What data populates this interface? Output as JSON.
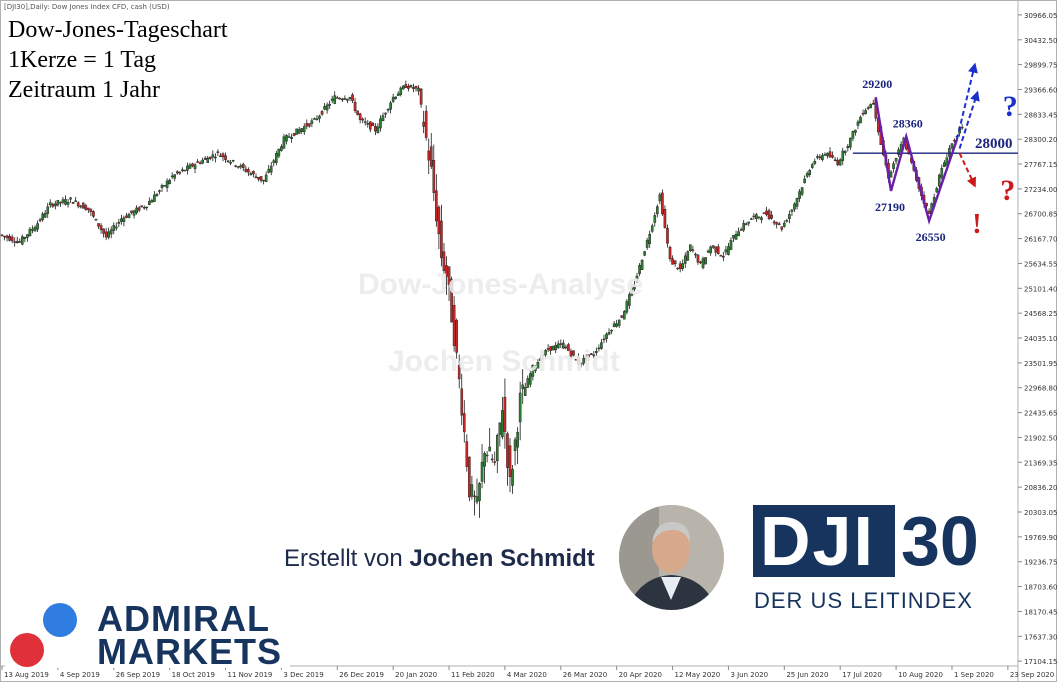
{
  "header": {
    "symbol_info": "[DJI30],Daily: Dow Jones Index CFD, cash (USD)",
    "title_line1": "Dow-Jones-Tageschart",
    "title_line2": "1Kerze = 1 Tag",
    "title_line3": "Zeitraum 1 Jahr"
  },
  "watermark": {
    "line1": "Dow-Jones-Analyse",
    "line2": "Jochen Schmidt"
  },
  "credit": {
    "prefix": "Erstellt von",
    "name": "Jochen Schmidt"
  },
  "brand": {
    "dji": "DJI",
    "number": "30",
    "subtitle": "DER US LEITINDEX",
    "admiral_line1": "ADMIRAL",
    "admiral_line2": "MARKETS"
  },
  "colors": {
    "navy": "#16345e",
    "bull": "#2e7d32",
    "bear": "#c62828",
    "pattern": "#6a1fa8",
    "arrow_blue": "#1a2fcc",
    "arrow_red": "#cc1a1a",
    "level_line": "#1a237e"
  },
  "chart_data": {
    "type": "candlestick",
    "title": "Dow-Jones-Tageschart",
    "y_ticks": [
      30966.05,
      30432.5,
      29899.75,
      29366.6,
      28833.45,
      28300.2,
      27767.15,
      27234.0,
      26700.85,
      26167.7,
      25634.55,
      25101.4,
      24568.25,
      24035.1,
      23501.95,
      22968.8,
      22435.65,
      21902.5,
      21369.35,
      20836.2,
      20303.05,
      19769.9,
      19236.75,
      18703.6,
      18170.45,
      17637.3,
      17104.15
    ],
    "x_ticks": [
      "13 Aug 2019",
      "4 Sep 2019",
      "26 Sep 2019",
      "18 Oct 2019",
      "11 Nov 2019",
      "3 Dec 2019",
      "26 Dec 2019",
      "20 Jan 2020",
      "11 Feb 2020",
      "4 Mar 2020",
      "26 Mar 2020",
      "20 Apr 2020",
      "12 May 2020",
      "3 Jun 2020",
      "25 Jun 2020",
      "17 Jul 2020",
      "10 Aug 2020",
      "1 Sep 2020",
      "23 Sep 2020"
    ],
    "ylim": [
      17000,
      31200
    ],
    "path_points": [
      {
        "d": 0,
        "v": 26250
      },
      {
        "d": 8,
        "v": 26100
      },
      {
        "d": 15,
        "v": 26500
      },
      {
        "d": 20,
        "v": 26900
      },
      {
        "d": 28,
        "v": 27000
      },
      {
        "d": 35,
        "v": 26800
      },
      {
        "d": 42,
        "v": 26200
      },
      {
        "d": 48,
        "v": 26600
      },
      {
        "d": 58,
        "v": 26900
      },
      {
        "d": 68,
        "v": 27500
      },
      {
        "d": 78,
        "v": 27800
      },
      {
        "d": 86,
        "v": 28000
      },
      {
        "d": 92,
        "v": 27800
      },
      {
        "d": 98,
        "v": 27600
      },
      {
        "d": 104,
        "v": 27400
      },
      {
        "d": 112,
        "v": 28300
      },
      {
        "d": 124,
        "v": 28700
      },
      {
        "d": 132,
        "v": 29200
      },
      {
        "d": 138,
        "v": 29200
      },
      {
        "d": 142,
        "v": 28700
      },
      {
        "d": 148,
        "v": 28500
      },
      {
        "d": 155,
        "v": 29200
      },
      {
        "d": 160,
        "v": 29450
      },
      {
        "d": 165,
        "v": 29350
      },
      {
        "d": 170,
        "v": 27600
      },
      {
        "d": 174,
        "v": 25800
      },
      {
        "d": 176,
        "v": 25400
      },
      {
        "d": 179,
        "v": 24100
      },
      {
        "d": 182,
        "v": 22600
      },
      {
        "d": 185,
        "v": 20800
      },
      {
        "d": 188,
        "v": 20400
      },
      {
        "d": 191,
        "v": 21700
      },
      {
        "d": 195,
        "v": 21300
      },
      {
        "d": 198,
        "v": 22600
      },
      {
        "d": 201,
        "v": 20900
      },
      {
        "d": 205,
        "v": 22700
      },
      {
        "d": 210,
        "v": 23400
      },
      {
        "d": 216,
        "v": 23800
      },
      {
        "d": 222,
        "v": 23900
      },
      {
        "d": 228,
        "v": 23500
      },
      {
        "d": 234,
        "v": 23700
      },
      {
        "d": 240,
        "v": 24200
      },
      {
        "d": 245,
        "v": 24500
      },
      {
        "d": 250,
        "v": 25200
      },
      {
        "d": 256,
        "v": 26300
      },
      {
        "d": 260,
        "v": 27100
      },
      {
        "d": 264,
        "v": 25700
      },
      {
        "d": 268,
        "v": 25500
      },
      {
        "d": 272,
        "v": 26000
      },
      {
        "d": 276,
        "v": 25600
      },
      {
        "d": 280,
        "v": 26000
      },
      {
        "d": 285,
        "v": 25800
      },
      {
        "d": 290,
        "v": 26300
      },
      {
        "d": 296,
        "v": 26600
      },
      {
        "d": 302,
        "v": 26700
      },
      {
        "d": 308,
        "v": 26400
      },
      {
        "d": 312,
        "v": 26800
      },
      {
        "d": 316,
        "v": 27300
      },
      {
        "d": 320,
        "v": 27800
      },
      {
        "d": 325,
        "v": 28000
      },
      {
        "d": 330,
        "v": 27800
      },
      {
        "d": 335,
        "v": 28300
      },
      {
        "d": 340,
        "v": 28900
      },
      {
        "d": 344,
        "v": 29100
      },
      {
        "d": 347,
        "v": 28200
      },
      {
        "d": 350,
        "v": 27500
      },
      {
        "d": 353,
        "v": 27900
      },
      {
        "d": 356,
        "v": 28300
      },
      {
        "d": 360,
        "v": 27600
      },
      {
        "d": 363,
        "v": 27100
      },
      {
        "d": 366,
        "v": 26700
      },
      {
        "d": 370,
        "v": 27500
      },
      {
        "d": 374,
        "v": 28100
      },
      {
        "d": 378,
        "v": 28500
      }
    ],
    "level_line": {
      "value": 28000,
      "label": "28000"
    },
    "annotations": [
      {
        "label": "29200",
        "d": 345,
        "v": 29200
      },
      {
        "label": "28360",
        "d": 357,
        "v": 28360
      },
      {
        "label": "27190",
        "d": 350,
        "v": 27190
      },
      {
        "label": "26550",
        "d": 366,
        "v": 26550
      }
    ],
    "pattern": [
      {
        "d": 344,
        "v": 29200
      },
      {
        "d": 350,
        "v": 27190
      },
      {
        "d": 356,
        "v": 28360
      },
      {
        "d": 365,
        "v": 26550
      },
      {
        "d": 376,
        "v": 28300
      }
    ],
    "projection_arrows": [
      {
        "from": {
          "d": 376,
          "v": 28300
        },
        "to": {
          "d": 383,
          "v": 29900
        },
        "color": "blue"
      },
      {
        "from": {
          "d": 377,
          "v": 28100
        },
        "to": {
          "d": 384,
          "v": 29300
        },
        "color": "blue"
      },
      {
        "from": {
          "d": 377,
          "v": 28000
        },
        "to": {
          "d": 383,
          "v": 27300
        },
        "color": "red"
      }
    ],
    "question_marks": [
      {
        "text": "?",
        "d": 394,
        "v": 28800,
        "color": "blue"
      },
      {
        "text": "?",
        "d": 393,
        "v": 27000,
        "color": "red"
      }
    ],
    "exclamation": {
      "text": "!",
      "d": 382,
      "v": 26550,
      "color": "red"
    }
  }
}
